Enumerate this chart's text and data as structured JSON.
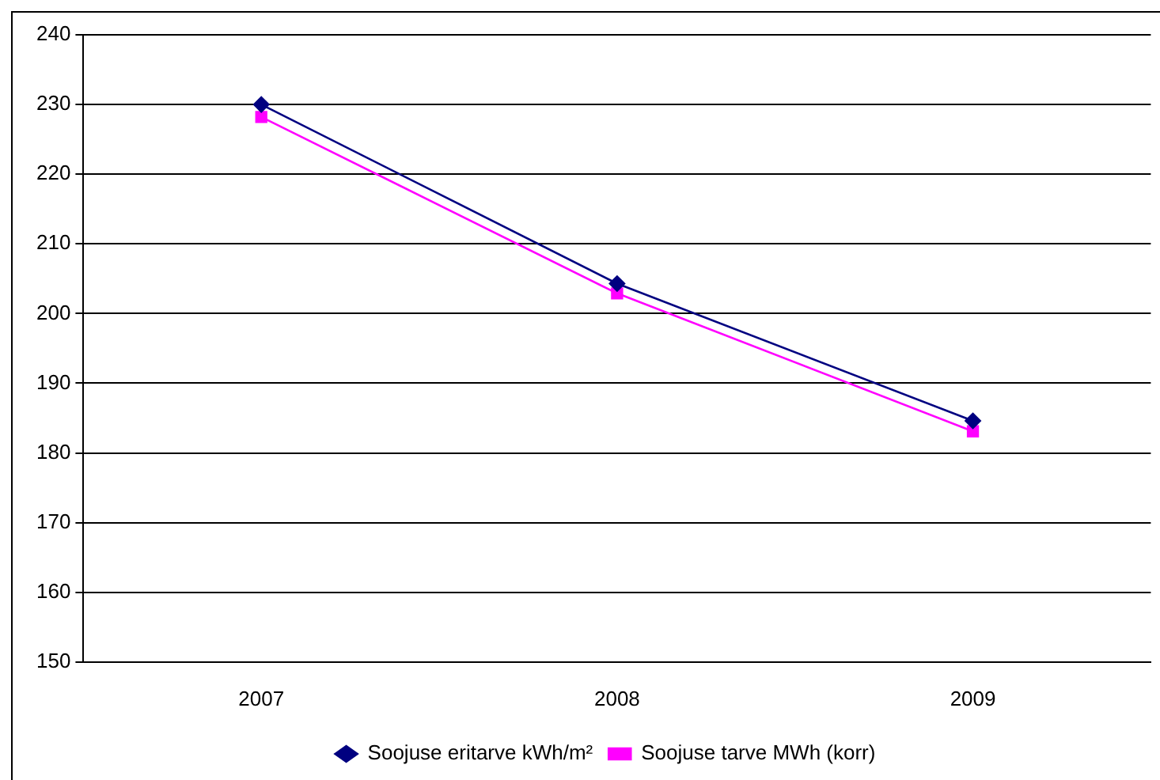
{
  "chart_data": {
    "type": "line",
    "categories": [
      "2007",
      "2008",
      "2009"
    ],
    "series": [
      {
        "name": "Soojuse eritarve kWh/m²",
        "color": "#000080",
        "marker": "diamond",
        "values": [
          230,
          204.3,
          184.6
        ]
      },
      {
        "name": "Soojuse tarve MWh (korr)",
        "color": "#ff00ff",
        "marker": "square",
        "values": [
          228.2,
          202.9,
          183.1
        ]
      }
    ],
    "ylim": [
      150,
      240
    ],
    "yticks": [
      150,
      160,
      170,
      180,
      190,
      200,
      210,
      220,
      230,
      240
    ],
    "grid": "y",
    "legend": "bottom",
    "line_style": "solid"
  }
}
